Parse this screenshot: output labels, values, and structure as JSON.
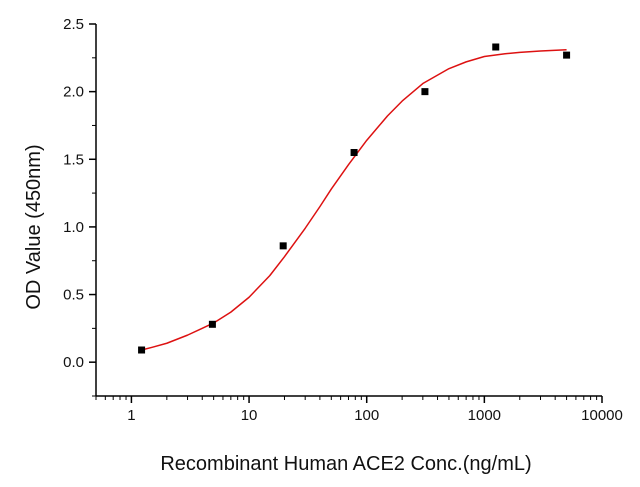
{
  "chart_data": {
    "type": "scatter",
    "title": "",
    "xlabel": "Recombinant Human ACE2 Conc.(ng/mL)",
    "ylabel": "OD Value (450nm)",
    "x_scale": "log",
    "xlim": [
      0.5,
      10000
    ],
    "ylim": [
      -0.25,
      2.5
    ],
    "x_ticks": [
      1,
      10,
      100,
      1000,
      10000
    ],
    "x_tick_labels": [
      "1",
      "10",
      "100",
      "1000",
      "10000"
    ],
    "y_ticks": [
      0.0,
      0.5,
      1.0,
      1.5,
      2.0,
      2.5
    ],
    "y_tick_labels": [
      "0.0",
      "0.5",
      "1.0",
      "1.5",
      "2.0",
      "2.5"
    ],
    "grid": false,
    "legend": "none",
    "series": [
      {
        "kind": "points",
        "marker": "square",
        "color": "#000000",
        "x": [
          1.22,
          4.88,
          19.5,
          78.1,
          312.5,
          1250,
          5000
        ],
        "y": [
          0.09,
          0.28,
          0.86,
          1.55,
          2.0,
          2.33,
          2.27
        ]
      },
      {
        "kind": "fit-line",
        "color": "#dd1111",
        "x": [
          1.22,
          1.5,
          2,
          3,
          4,
          5,
          7,
          10,
          15,
          20,
          30,
          40,
          50,
          70,
          100,
          150,
          200,
          300,
          500,
          700,
          1000,
          1500,
          2000,
          3000,
          5000
        ],
        "y": [
          0.09,
          0.11,
          0.14,
          0.2,
          0.25,
          0.29,
          0.37,
          0.48,
          0.64,
          0.78,
          0.99,
          1.15,
          1.28,
          1.46,
          1.64,
          1.82,
          1.93,
          2.06,
          2.17,
          2.22,
          2.26,
          2.28,
          2.29,
          2.3,
          2.31
        ]
      }
    ]
  }
}
